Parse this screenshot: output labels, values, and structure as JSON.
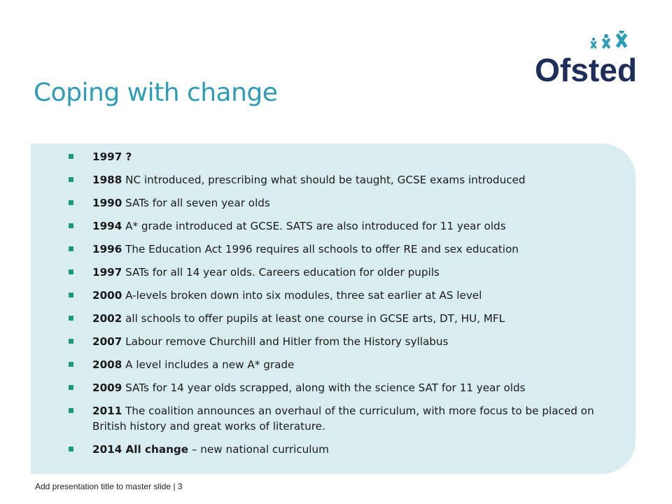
{
  "slide": {
    "title": "Coping with change",
    "logo_text": "Ofsted",
    "colors": {
      "title": "#2e9cb5",
      "panel_background": "#d9edf1",
      "bullet_marker": "#1a9a7a",
      "logo_navy": "#1e2d5a",
      "logo_accent": "#2e9cb5"
    }
  },
  "bullets": [
    {
      "year": "1997 ?",
      "text": ""
    },
    {
      "year": "1988",
      "text": " NC introduced, prescribing what should be taught, GCSE exams introduced"
    },
    {
      "year": "1990",
      "text": " SATs for all seven year olds"
    },
    {
      "year": "1994",
      "text": " A* grade introduced at GCSE. SATS are also introduced for 11 year olds"
    },
    {
      "year": "1996",
      "text": " The Education Act 1996 requires all schools to offer RE and sex education"
    },
    {
      "year": "1997",
      "text": " SATs for all 14 year olds. Careers education for older pupils"
    },
    {
      "year": "2000",
      "text": " A-levels broken down into six modules, three sat earlier at AS level"
    },
    {
      "year": "2002",
      "text": " all schools to offer pupils at least one course in GCSE arts, DT, HU, MFL"
    },
    {
      "year": "2007",
      "text": " Labour remove Churchill and Hitler from the History syllabus"
    },
    {
      "year": "2008",
      "text": " A level includes a new A* grade"
    },
    {
      "year": "2009",
      "text": " SATs for 14 year olds scrapped, along with the science SAT for 11 year olds"
    },
    {
      "year": "2011",
      "text": " The coalition announces an overhaul of the curriculum, with more focus to be placed on British history and great works of literature."
    },
    {
      "year": "2014 All change",
      "text": " – new national curriculum"
    }
  ],
  "footer": {
    "text": "Add presentation title to master slide  |  3"
  }
}
